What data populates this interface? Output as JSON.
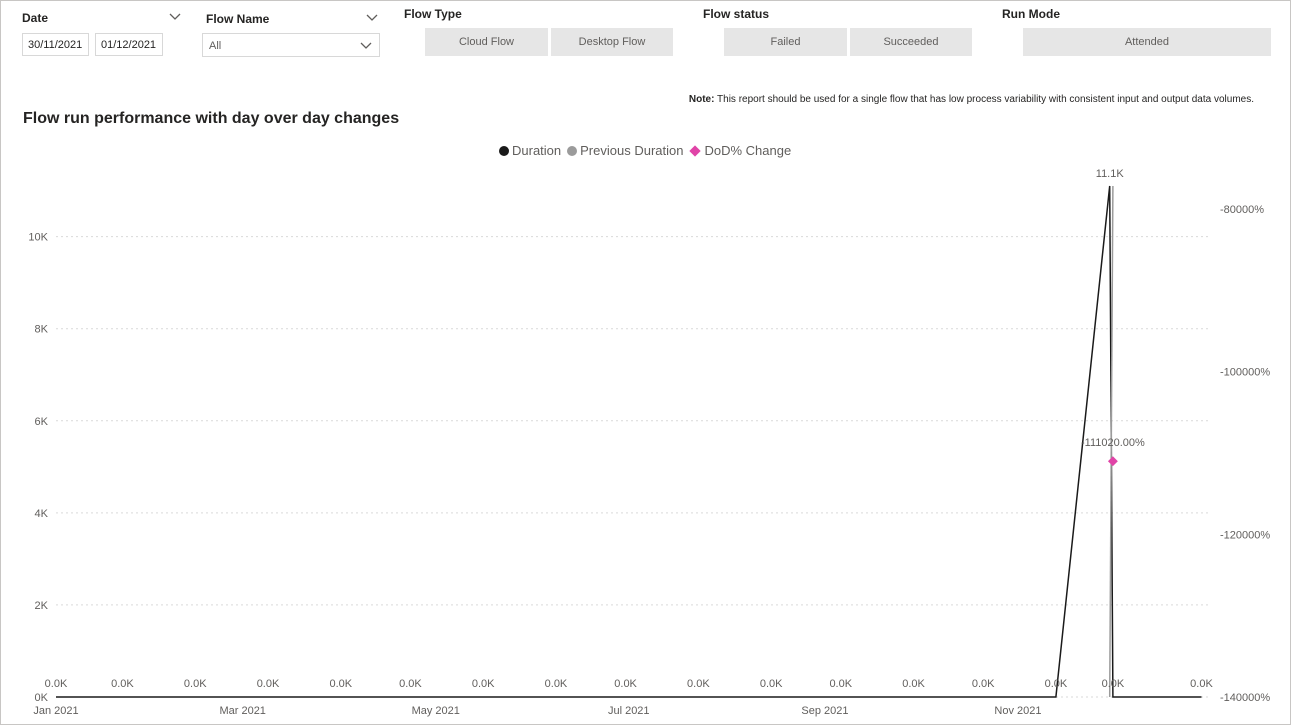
{
  "filters": {
    "date": {
      "title": "Date",
      "start": "30/11/2021",
      "end": "01/12/2021"
    },
    "flow_name": {
      "title": "Flow Name",
      "value": "All"
    },
    "flow_type": {
      "title": "Flow Type",
      "options": [
        "Cloud Flow",
        "Desktop Flow"
      ]
    },
    "flow_status": {
      "title": "Flow status",
      "options": [
        "Failed",
        "Succeeded"
      ]
    },
    "run_mode": {
      "title": "Run Mode",
      "options": [
        "Attended"
      ]
    }
  },
  "note": {
    "label": "Note:",
    "text": "This report should be used for a single flow that has low process variability with consistent input and output data volumes."
  },
  "colors": {
    "duration": "#1a1a1a",
    "previous_duration": "#9b9b9b",
    "dod_change": "#e044a7",
    "gridline": "#d9d9d9",
    "tile_bg": "#e6e6e6"
  },
  "chart_data": {
    "type": "line",
    "title": "Flow run performance with day over day changes",
    "legend": [
      "Duration",
      "Previous Duration",
      "DoD% Change"
    ],
    "legend_position": "top-center",
    "x_axis": {
      "type": "date",
      "ticks": [
        "Jan 2021",
        "Mar 2021",
        "May 2021",
        "Jul 2021",
        "Sep 2021",
        "Nov 2021"
      ],
      "tick_dates": [
        "2021-01-01",
        "2021-03-01",
        "2021-05-01",
        "2021-07-01",
        "2021-09-01",
        "2021-11-01"
      ],
      "range": [
        "2021-01-01",
        "2021-12-31"
      ]
    },
    "y_axis_left": {
      "ticks": [
        0,
        2000,
        4000,
        6000,
        8000,
        10000
      ],
      "tick_labels": [
        "0K",
        "2K",
        "4K",
        "6K",
        "8K",
        "10K"
      ],
      "range": [
        0,
        11100
      ],
      "grid": true
    },
    "y_axis_right": {
      "ticks": [
        -80000,
        -100000,
        -120000,
        -140000
      ],
      "tick_labels": [
        "-80000%",
        "-100000%",
        "-120000%",
        "-140000%"
      ],
      "range": [
        -140000,
        -77200
      ]
    },
    "series": [
      {
        "name": "Duration",
        "x": [
          "2021-01-01",
          "2021-01-22",
          "2021-02-14",
          "2021-03-09",
          "2021-04-01",
          "2021-04-23",
          "2021-05-16",
          "2021-06-08",
          "2021-06-30",
          "2021-07-23",
          "2021-08-15",
          "2021-09-06",
          "2021-09-29",
          "2021-10-21",
          "2021-11-13",
          "2021-11-30",
          "2021-12-01",
          "2021-12-29"
        ],
        "y": [
          0,
          0,
          0,
          0,
          0,
          0,
          0,
          0,
          0,
          0,
          0,
          0,
          0,
          0,
          0,
          11100,
          0,
          0
        ],
        "data_labels": [
          "0.0K",
          "0.0K",
          "0.0K",
          "0.0K",
          "0.0K",
          "0.0K",
          "0.0K",
          "0.0K",
          "0.0K",
          "0.0K",
          "0.0K",
          "0.0K",
          "0.0K",
          "0.0K",
          "0.0K",
          "11.1K",
          "0.0K",
          "0.0K"
        ]
      },
      {
        "name": "Previous Duration",
        "x": [
          "2021-11-30",
          "2021-12-01"
        ],
        "y": [
          0,
          11100
        ]
      },
      {
        "name": "DoD% Change",
        "x": [
          "2021-12-01"
        ],
        "y": [
          -111020
        ],
        "data_labels": [
          "-111020.00%"
        ]
      }
    ]
  }
}
